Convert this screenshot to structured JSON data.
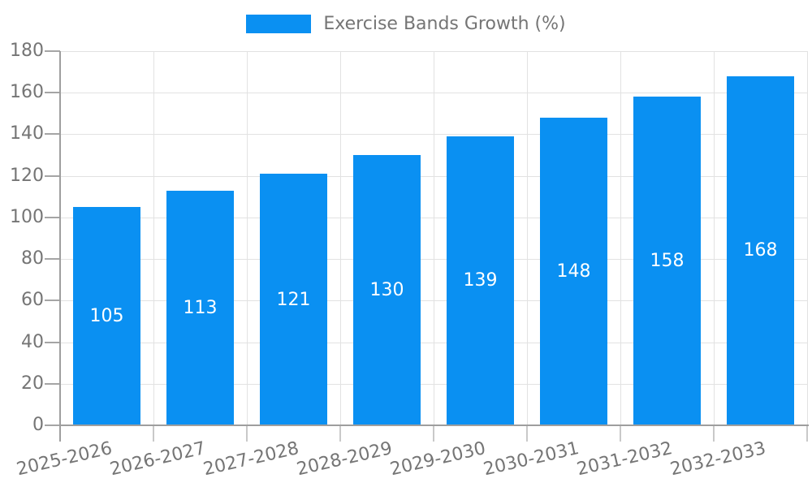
{
  "legend": {
    "label": "Exercise Bands Growth (%)"
  },
  "chart_data": {
    "type": "bar",
    "title": "Exercise Bands Growth (%)",
    "categories": [
      "2025-2026",
      "2026-2027",
      "2027-2028",
      "2028-2029",
      "2029-2030",
      "2030-2031",
      "2031-2032",
      "2032-2033"
    ],
    "values": [
      105,
      113,
      121,
      130,
      139,
      148,
      158,
      168
    ],
    "series": [
      {
        "name": "Exercise Bands Growth (%)",
        "values": [
          105,
          113,
          121,
          130,
          139,
          148,
          158,
          168
        ]
      }
    ],
    "value_labels_shown": true,
    "xlabel": "",
    "ylabel": "",
    "ylim": [
      0,
      180
    ],
    "yticks": [
      0,
      20,
      40,
      60,
      80,
      100,
      120,
      140,
      160,
      180
    ],
    "grid": true,
    "legend_position": "top",
    "colors": {
      "bar": "#0a90f2",
      "value_label": "#ffffff",
      "axis_text": "#757575",
      "gridline": "#e2e2e2",
      "axis_line": "#9e9e9e",
      "background": "#ffffff"
    }
  }
}
